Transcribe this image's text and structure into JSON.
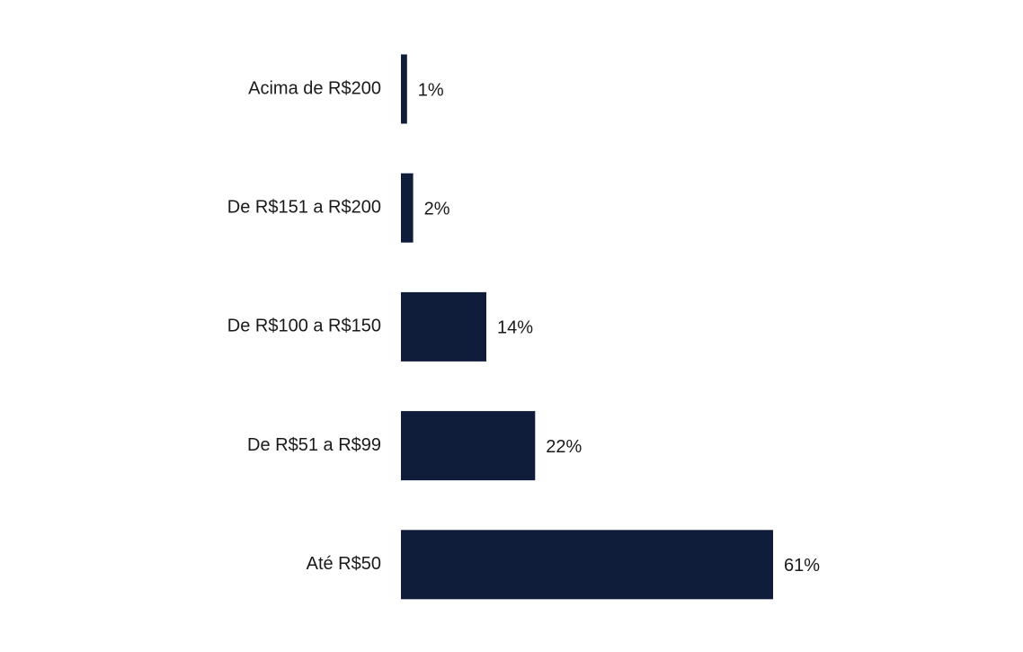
{
  "colors": {
    "bar": "#0f1c3a",
    "text": "#1a1a1a",
    "background": "#ffffff"
  },
  "chart_data": {
    "type": "bar",
    "orientation": "horizontal",
    "categories": [
      "Acima de R$200",
      "De R$151 a R$200",
      "De R$100 a R$150",
      "De R$51 a R$99",
      "Até R$50"
    ],
    "values": [
      1,
      2,
      14,
      22,
      61
    ],
    "value_labels": [
      "1%",
      "2%",
      "14%",
      "22%",
      "61%"
    ],
    "unit": "%",
    "xlim": [
      0,
      61
    ],
    "grid": false,
    "legend": "none"
  }
}
